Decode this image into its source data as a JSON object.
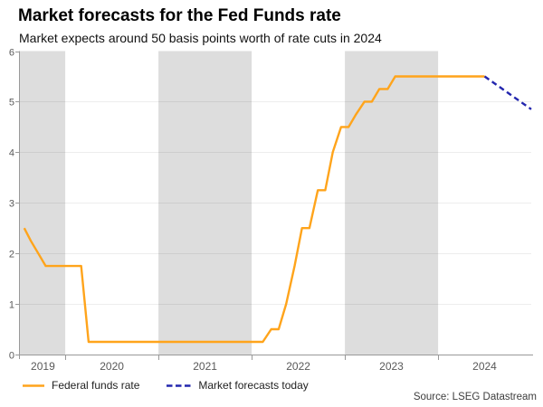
{
  "header": {
    "title": "Market forecasts for the Fed Funds rate",
    "subtitle": "Market expects around 50 basis points worth of rate cuts in 2024"
  },
  "chart_data": {
    "type": "line",
    "title": "Market forecasts for the Fed Funds rate",
    "subtitle": "Market expects around 50 basis points worth of rate cuts in 2024",
    "x_axis": {
      "domain": [
        2019.513,
        2025.0
      ],
      "tick_boundaries": [
        2020,
        2021,
        2022,
        2023,
        2024
      ],
      "year_labels": [
        {
          "label": "2019",
          "t": 2019.76
        },
        {
          "label": "2020",
          "t": 2020.5
        },
        {
          "label": "2021",
          "t": 2021.5
        },
        {
          "label": "2022",
          "t": 2022.5
        },
        {
          "label": "2023",
          "t": 2023.5
        },
        {
          "label": "2024",
          "t": 2024.5
        }
      ]
    },
    "y_axis": {
      "domain": [
        0,
        6
      ],
      "ticks": [
        0,
        1,
        2,
        3,
        4,
        5,
        6
      ]
    },
    "shaded_year_bands": [
      [
        2019.513,
        2020
      ],
      [
        2021,
        2022
      ],
      [
        2023,
        2024
      ]
    ],
    "grid": "horizontal",
    "legend_position": "bottom-left",
    "series": [
      {
        "name": "Federal funds rate",
        "color": "#FFA41B",
        "style": "solid",
        "points": [
          [
            2019.56,
            2.5
          ],
          [
            2019.63,
            2.25
          ],
          [
            2019.71,
            2.0
          ],
          [
            2019.79,
            1.75
          ],
          [
            2020.17,
            1.75
          ],
          [
            2020.25,
            0.25
          ],
          [
            2022.12,
            0.25
          ],
          [
            2022.21,
            0.5
          ],
          [
            2022.29,
            0.5
          ],
          [
            2022.37,
            1.0
          ],
          [
            2022.46,
            1.75
          ],
          [
            2022.54,
            2.5
          ],
          [
            2022.62,
            2.5
          ],
          [
            2022.71,
            3.25
          ],
          [
            2022.79,
            3.25
          ],
          [
            2022.87,
            4.0
          ],
          [
            2022.96,
            4.5
          ],
          [
            2023.04,
            4.5
          ],
          [
            2023.12,
            4.75
          ],
          [
            2023.21,
            5.0
          ],
          [
            2023.29,
            5.0
          ],
          [
            2023.37,
            5.25
          ],
          [
            2023.46,
            5.25
          ],
          [
            2023.54,
            5.5
          ],
          [
            2024.5,
            5.5
          ]
        ]
      },
      {
        "name": "Market forecasts today",
        "color": "#2326AE",
        "style": "dashed",
        "points": [
          [
            2024.5,
            5.5
          ],
          [
            2025.0,
            4.85
          ]
        ]
      }
    ],
    "colors": {
      "band": "#DDDDDD",
      "axis": "#999999",
      "tick_label": "#595959",
      "gridline": "rgba(0,0,0,0.07)"
    }
  },
  "footer": {
    "source": "Source: LSEG Datastream"
  }
}
